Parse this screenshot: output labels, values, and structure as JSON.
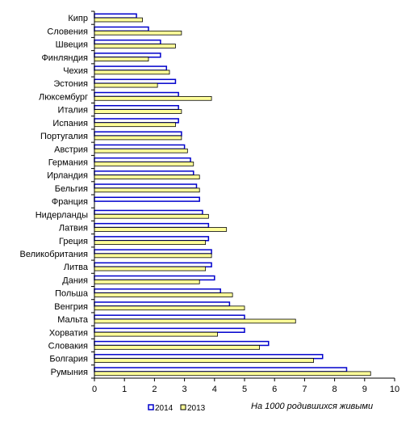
{
  "chart_data": {
    "type": "bar",
    "orientation": "horizontal",
    "categories": [
      "Кипр",
      "Словения",
      "Швеция",
      "Финляндия",
      "Чехия",
      "Эстония",
      "Люксембург",
      "Италия",
      "Испания",
      "Португалия",
      "Австрия",
      "Германия",
      "Ирландия",
      "Бельгия",
      "Франция",
      "Нидерланды",
      "Латвия",
      "Греция",
      "Великобритания",
      "Литва",
      "Дания",
      "Польша",
      "Венгрия",
      "Мальта",
      "Хорватия",
      "Словакия",
      "Болгария",
      "Румыния"
    ],
    "series": [
      {
        "name": "2014",
        "color": "#0000cc",
        "fill": "#ffffff",
        "values": [
          1.4,
          1.8,
          2.2,
          2.2,
          2.4,
          2.7,
          2.8,
          2.8,
          2.8,
          2.9,
          3.0,
          3.2,
          3.3,
          3.4,
          3.5,
          3.6,
          3.8,
          3.8,
          3.9,
          3.9,
          4.0,
          4.2,
          4.5,
          5.0,
          5.0,
          5.8,
          7.6,
          8.4
        ]
      },
      {
        "name": "2013",
        "color": "#000000",
        "fill": "#ffff99",
        "values": [
          1.6,
          2.9,
          2.7,
          1.8,
          2.5,
          2.1,
          3.9,
          2.9,
          2.7,
          2.9,
          3.1,
          3.3,
          3.5,
          3.5,
          null,
          3.8,
          4.4,
          3.7,
          3.9,
          3.7,
          3.5,
          4.6,
          5.0,
          6.7,
          4.1,
          5.5,
          7.3,
          9.2
        ]
      }
    ],
    "xlim": [
      0,
      10
    ],
    "xticks": [
      "0",
      "1",
      "2",
      "3",
      "4",
      "5",
      "6",
      "7",
      "8",
      "9",
      "10"
    ],
    "xlabel": "На 1000 родившихся живыми",
    "grid": false,
    "legend_position": "bottom-left"
  }
}
